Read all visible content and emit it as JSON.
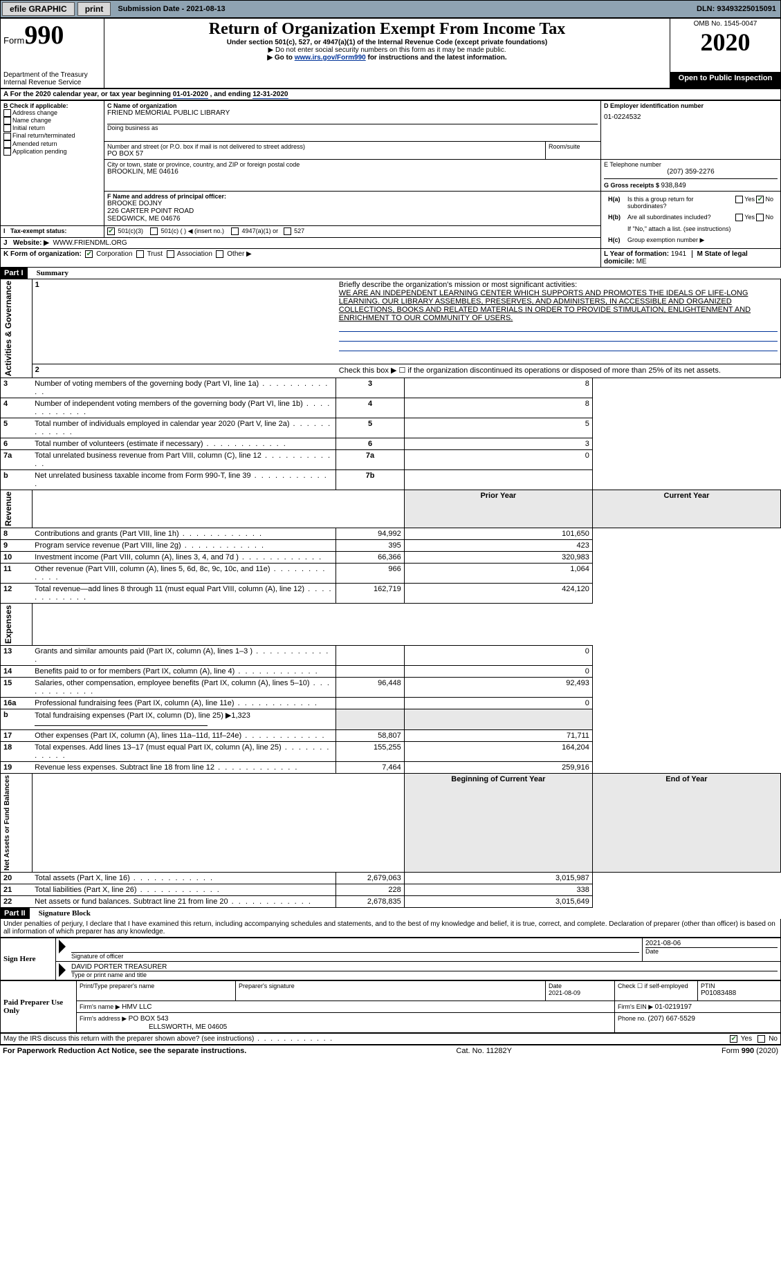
{
  "topbar": {
    "efile": "efile GRAPHIC",
    "print": "print",
    "subdate_label": "Submission Date - ",
    "subdate": "2021-08-13",
    "dln_label": "DLN: ",
    "dln": "93493225015091"
  },
  "header": {
    "form_word": "Form",
    "form_num": "990",
    "dept": "Department of the Treasury",
    "irs": "Internal Revenue Service",
    "title": "Return of Organization Exempt From Income Tax",
    "subtitle": "Under section 501(c), 527, or 4947(a)(1) of the Internal Revenue Code (except private foundations)",
    "warn1": "▶ Do not enter social security numbers on this form as it may be made public.",
    "warn2_pre": "▶ Go to ",
    "warn2_link": "www.irs.gov/Form990",
    "warn2_post": " for instructions and the latest information.",
    "omb": "OMB No. 1545-0047",
    "year": "2020",
    "open": "Open to Public Inspection"
  },
  "period": {
    "line": "For the 2020 calendar year, or tax year beginning ",
    "begin": "01-01-2020",
    "mid": " , and ending ",
    "end": "12-31-2020"
  },
  "boxB": {
    "hdr": "B Check if applicable:",
    "items": [
      "Address change",
      "Name change",
      "Initial return",
      "Final return/terminated",
      "Amended return",
      "Application pending"
    ]
  },
  "boxC": {
    "hdr": "C Name of organization",
    "name": "FRIEND MEMORIAL PUBLIC LIBRARY",
    "dba": "Doing business as",
    "addr_hdr": "Number and street (or P.O. box if mail is not delivered to street address)",
    "room": "Room/suite",
    "addr": "PO BOX 57",
    "city_hdr": "City or town, state or province, country, and ZIP or foreign postal code",
    "city": "BROOKLIN, ME  04616"
  },
  "boxD": {
    "hdr": "D Employer identification number",
    "val": "01-0224532"
  },
  "boxE": {
    "hdr": "E Telephone number",
    "val": "(207) 359-2276"
  },
  "boxG": {
    "hdr": "G Gross receipts $ ",
    "val": "938,849"
  },
  "boxF": {
    "hdr": "F Name and address of principal officer:",
    "l1": "BROOKE DOJNY",
    "l2": "226 CARTER POINT ROAD",
    "l3": "SEDGWICK, ME  04676"
  },
  "boxH": {
    "ha": "Is this a group return for subordinates?",
    "hb": "Are all subordinates included?",
    "hb_note": "If \"No,\" attach a list. (see instructions)",
    "hc": "Group exemption number ▶",
    "yes": "Yes",
    "no": "No"
  },
  "boxI": {
    "hdr": "Tax-exempt status:",
    "c1": "501(c)(3)",
    "c2": "501(c) (   ) ◀ (insert no.)",
    "c3": "4947(a)(1) or",
    "c4": "527"
  },
  "boxJ": {
    "hdr": "Website: ▶",
    "val": "WWW.FRIENDML.ORG"
  },
  "boxK": {
    "hdr": "K Form of organization:",
    "opts": [
      "Corporation",
      "Trust",
      "Association",
      "Other ▶"
    ]
  },
  "boxL": {
    "hdr": "L Year of formation: ",
    "val": "1941"
  },
  "boxM": {
    "hdr": "M State of legal domicile: ",
    "val": "ME"
  },
  "part1": {
    "hdr": "Part I",
    "title": "Summary",
    "l1_label": "Briefly describe the organization's mission or most significant activities:",
    "l1_text": "WE ARE AN INDEPENDENT LEARNING CENTER WHICH SUPPORTS AND PROMOTES THE IDEALS OF LIFE-LONG LEARNING. OUR LIBRARY ASSEMBLES, PRESERVES, AND ADMINISTERS, IN ACCESSIBLE AND ORGANIZED COLLECTIONS, BOOKS AND RELATED MATERIALS IN ORDER TO PROVIDE STIMULATION, ENLIGHTENMENT AND ENRICHMENT TO OUR COMMUNITY OF USERS.",
    "l2": "Check this box ▶ ☐ if the organization discontinued its operations or disposed of more than 25% of its net assets.",
    "rows_gov": [
      {
        "n": "3",
        "t": "Number of voting members of the governing body (Part VI, line 1a)",
        "box": "3",
        "v": "8"
      },
      {
        "n": "4",
        "t": "Number of independent voting members of the governing body (Part VI, line 1b)",
        "box": "4",
        "v": "8"
      },
      {
        "n": "5",
        "t": "Total number of individuals employed in calendar year 2020 (Part V, line 2a)",
        "box": "5",
        "v": "5"
      },
      {
        "n": "6",
        "t": "Total number of volunteers (estimate if necessary)",
        "box": "6",
        "v": "3"
      },
      {
        "n": "7a",
        "t": "Total unrelated business revenue from Part VIII, column (C), line 12",
        "box": "7a",
        "v": "0"
      },
      {
        "n": "b",
        "t": "Net unrelated business taxable income from Form 990-T, line 39",
        "box": "7b",
        "v": ""
      }
    ],
    "col_prior": "Prior Year",
    "col_curr": "Current Year",
    "rows_rev": [
      {
        "n": "8",
        "t": "Contributions and grants (Part VIII, line 1h)",
        "p": "94,992",
        "c": "101,650"
      },
      {
        "n": "9",
        "t": "Program service revenue (Part VIII, line 2g)",
        "p": "395",
        "c": "423"
      },
      {
        "n": "10",
        "t": "Investment income (Part VIII, column (A), lines 3, 4, and 7d )",
        "p": "66,366",
        "c": "320,983"
      },
      {
        "n": "11",
        "t": "Other revenue (Part VIII, column (A), lines 5, 6d, 8c, 9c, 10c, and 11e)",
        "p": "966",
        "c": "1,064"
      },
      {
        "n": "12",
        "t": "Total revenue—add lines 8 through 11 (must equal Part VIII, column (A), line 12)",
        "p": "162,719",
        "c": "424,120"
      }
    ],
    "rows_exp": [
      {
        "n": "13",
        "t": "Grants and similar amounts paid (Part IX, column (A), lines 1–3 )",
        "p": "",
        "c": "0"
      },
      {
        "n": "14",
        "t": "Benefits paid to or for members (Part IX, column (A), line 4)",
        "p": "",
        "c": "0"
      },
      {
        "n": "15",
        "t": "Salaries, other compensation, employee benefits (Part IX, column (A), lines 5–10)",
        "p": "96,448",
        "c": "92,493"
      },
      {
        "n": "16a",
        "t": "Professional fundraising fees (Part IX, column (A), line 11e)",
        "p": "",
        "c": "0"
      },
      {
        "n": "b",
        "t": "Total fundraising expenses (Part IX, column (D), line 25) ▶1,323",
        "p": "",
        "c": "",
        "nobox": true
      },
      {
        "n": "17",
        "t": "Other expenses (Part IX, column (A), lines 11a–11d, 11f–24e)",
        "p": "58,807",
        "c": "71,711"
      },
      {
        "n": "18",
        "t": "Total expenses. Add lines 13–17 (must equal Part IX, column (A), line 25)",
        "p": "155,255",
        "c": "164,204"
      },
      {
        "n": "19",
        "t": "Revenue less expenses. Subtract line 18 from line 12",
        "p": "7,464",
        "c": "259,916"
      }
    ],
    "col_begin": "Beginning of Current Year",
    "col_end": "End of Year",
    "rows_net": [
      {
        "n": "20",
        "t": "Total assets (Part X, line 16)",
        "p": "2,679,063",
        "c": "3,015,987"
      },
      {
        "n": "21",
        "t": "Total liabilities (Part X, line 26)",
        "p": "228",
        "c": "338"
      },
      {
        "n": "22",
        "t": "Net assets or fund balances. Subtract line 21 from line 20",
        "p": "2,678,835",
        "c": "3,015,649"
      }
    ],
    "vlabels": {
      "gov": "Activities & Governance",
      "rev": "Revenue",
      "exp": "Expenses",
      "net": "Net Assets or Fund Balances"
    }
  },
  "part2": {
    "hdr": "Part II",
    "title": "Signature Block",
    "decl": "Under penalties of perjury, I declare that I have examined this return, including accompanying schedules and statements, and to the best of my knowledge and belief, it is true, correct, and complete. Declaration of preparer (other than officer) is based on all information of which preparer has any knowledge.",
    "sign_here": "Sign Here",
    "sig_officer": "Signature of officer",
    "date": "Date",
    "sig_date": "2021-08-06",
    "name_title": "DAVID PORTER  TREASURER",
    "name_title_lbl": "Type or print name and title",
    "paid": "Paid Preparer Use Only",
    "print_name": "Print/Type preparer's name",
    "prep_sig": "Preparer's signature",
    "prep_date_lbl": "Date",
    "prep_date": "2021-08-09",
    "check_self": "Check ☐ if self-employed",
    "ptin_lbl": "PTIN",
    "ptin": "P01083488",
    "firm_name_lbl": "Firm's name   ▶ ",
    "firm_name": "HMV LLC",
    "firm_ein_lbl": "Firm's EIN ▶ ",
    "firm_ein": "01-0219197",
    "firm_addr_lbl": "Firm's address ▶ ",
    "firm_addr1": "PO BOX 543",
    "firm_addr2": "ELLSWORTH, ME  04605",
    "firm_phone_lbl": "Phone no. ",
    "firm_phone": "(207) 667-5529",
    "may_discuss": "May the IRS discuss this return with the preparer shown above? (see instructions)"
  },
  "footer": {
    "pra": "For Paperwork Reduction Act Notice, see the separate instructions.",
    "cat": "Cat. No. 11282Y",
    "form": "Form 990 (2020)"
  }
}
